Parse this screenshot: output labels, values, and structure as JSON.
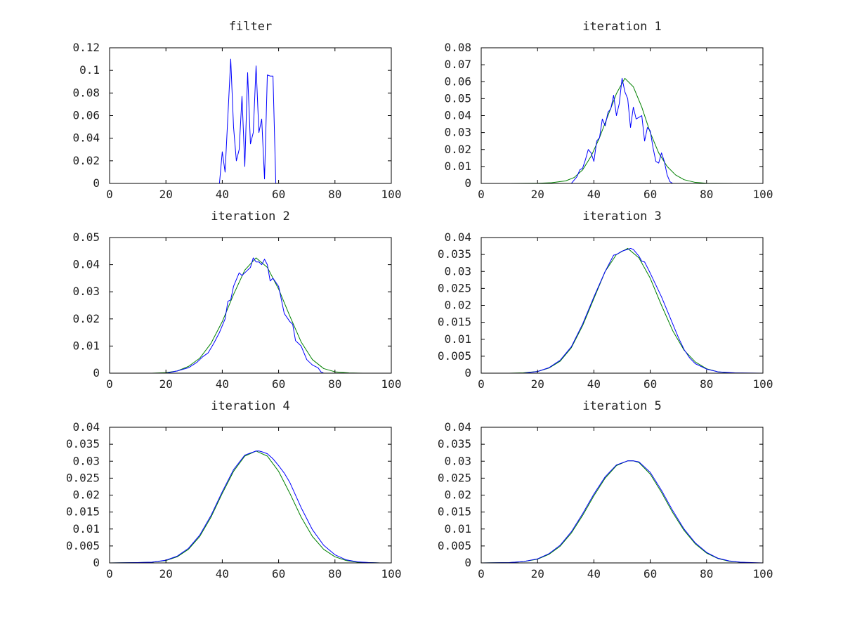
{
  "figure": {
    "colors": {
      "noisy": "#0000ff",
      "smooth": "#008000",
      "axis": "#000000",
      "text": "#222222"
    }
  },
  "chart_data": [
    {
      "type": "line",
      "title": "filter",
      "xlim": [
        0,
        100
      ],
      "ylim": [
        0,
        0.12
      ],
      "xticks": [
        0,
        20,
        40,
        60,
        80,
        100
      ],
      "xtick_labels": [
        "0",
        "20",
        "40",
        "60",
        "80",
        "100"
      ],
      "yticks": [
        0,
        0.02,
        0.04,
        0.06,
        0.08,
        0.1,
        0.12
      ],
      "ytick_labels": [
        "0",
        "0.02",
        "0.04",
        "0.06",
        "0.08",
        "0.1",
        "0.12"
      ],
      "grid": false,
      "series": [
        {
          "color": "#0000ff",
          "x": [
            0,
            39,
            40,
            41,
            42,
            43,
            44,
            45,
            46,
            47,
            48,
            49,
            50,
            51,
            52,
            53,
            54,
            55,
            56,
            57,
            58,
            59,
            60,
            61,
            100
          ],
          "y": [
            0,
            0,
            0.028,
            0.01,
            0.06,
            0.11,
            0.05,
            0.02,
            0.03,
            0.077,
            0.015,
            0.098,
            0.035,
            0.045,
            0.104,
            0.045,
            0.057,
            0.004,
            0.096,
            0.095,
            0.095,
            0,
            0,
            0,
            0
          ]
        }
      ]
    },
    {
      "type": "line",
      "title": "iteration 1",
      "xlim": [
        0,
        100
      ],
      "ylim": [
        0,
        0.08
      ],
      "xticks": [
        0,
        20,
        40,
        60,
        80,
        100
      ],
      "xtick_labels": [
        "0",
        "20",
        "40",
        "60",
        "80",
        "100"
      ],
      "yticks": [
        0,
        0.01,
        0.02,
        0.03,
        0.04,
        0.05,
        0.06,
        0.07,
        0.08
      ],
      "ytick_labels": [
        "0",
        "0.01",
        "0.02",
        "0.03",
        "0.04",
        "0.05",
        "0.06",
        "0.07",
        "0.08"
      ],
      "grid": false,
      "series": [
        {
          "color": "#008000",
          "x": [
            0,
            10,
            20,
            25,
            30,
            33,
            36,
            39,
            42,
            45,
            48,
            51,
            54,
            57,
            60,
            63,
            66,
            69,
            72,
            76,
            80,
            90,
            100
          ],
          "y": [
            0,
            0,
            0.0001,
            0.0004,
            0.0015,
            0.0035,
            0.008,
            0.016,
            0.027,
            0.04,
            0.053,
            0.062,
            0.057,
            0.045,
            0.03,
            0.018,
            0.01,
            0.005,
            0.0022,
            0.0006,
            0.0001,
            0,
            0
          ]
        },
        {
          "color": "#0000ff",
          "x": [
            0,
            32,
            33,
            34,
            35,
            36,
            37,
            38,
            39,
            40,
            41,
            42,
            43,
            44,
            45,
            46,
            47,
            48,
            49,
            50,
            51,
            52,
            53,
            54,
            55,
            56,
            57,
            58,
            59,
            60,
            61,
            62,
            63,
            64,
            65,
            66,
            67,
            68,
            69,
            100
          ],
          "y": [
            0,
            0,
            0.002,
            0.004,
            0.008,
            0.009,
            0.014,
            0.02,
            0.018,
            0.013,
            0.025,
            0.027,
            0.038,
            0.034,
            0.042,
            0.044,
            0.052,
            0.04,
            0.047,
            0.062,
            0.054,
            0.05,
            0.033,
            0.045,
            0.038,
            0.039,
            0.04,
            0.025,
            0.033,
            0.031,
            0.021,
            0.013,
            0.012,
            0.018,
            0.013,
            0.005,
            0.001,
            0,
            0,
            0
          ]
        }
      ]
    },
    {
      "type": "line",
      "title": "iteration 2",
      "xlim": [
        0,
        100
      ],
      "ylim": [
        0,
        0.05
      ],
      "xticks": [
        0,
        20,
        40,
        60,
        80,
        100
      ],
      "xtick_labels": [
        "0",
        "20",
        "40",
        "60",
        "80",
        "100"
      ],
      "yticks": [
        0,
        0.01,
        0.02,
        0.03,
        0.04,
        0.05
      ],
      "ytick_labels": [
        "0",
        "0.01",
        "0.02",
        "0.03",
        "0.04",
        "0.05"
      ],
      "grid": false,
      "series": [
        {
          "color": "#008000",
          "x": [
            0,
            15,
            20,
            24,
            28,
            32,
            36,
            40,
            44,
            48,
            52,
            56,
            60,
            64,
            68,
            72,
            76,
            80,
            85,
            90,
            100
          ],
          "y": [
            0,
            0,
            0.0002,
            0.0008,
            0.0025,
            0.0055,
            0.011,
            0.019,
            0.029,
            0.038,
            0.0425,
            0.039,
            0.031,
            0.021,
            0.0115,
            0.005,
            0.0017,
            0.0005,
            0.0001,
            0,
            0
          ]
        },
        {
          "color": "#0000ff",
          "x": [
            0,
            20,
            24,
            28,
            31,
            33,
            35,
            37,
            39,
            41,
            42,
            43,
            44,
            46,
            47,
            48,
            50,
            51,
            52,
            53,
            54,
            55,
            56,
            57,
            58,
            60,
            61,
            62,
            64,
            65,
            66,
            67,
            68,
            70,
            71,
            72,
            74,
            75,
            76,
            80,
            100
          ],
          "y": [
            0,
            0,
            0.0008,
            0.002,
            0.004,
            0.006,
            0.0075,
            0.011,
            0.015,
            0.02,
            0.0265,
            0.027,
            0.032,
            0.037,
            0.036,
            0.037,
            0.039,
            0.0425,
            0.041,
            0.041,
            0.04,
            0.042,
            0.04,
            0.034,
            0.035,
            0.032,
            0.027,
            0.022,
            0.019,
            0.018,
            0.012,
            0.011,
            0.01,
            0.005,
            0.004,
            0.003,
            0.002,
            0.0005,
            0,
            0,
            0
          ]
        }
      ]
    },
    {
      "type": "line",
      "title": "iteration 3",
      "xlim": [
        0,
        100
      ],
      "ylim": [
        0,
        0.04
      ],
      "xticks": [
        0,
        20,
        40,
        60,
        80,
        100
      ],
      "xtick_labels": [
        "0",
        "20",
        "40",
        "60",
        "80",
        "100"
      ],
      "yticks": [
        0,
        0.005,
        0.01,
        0.015,
        0.02,
        0.025,
        0.03,
        0.035,
        0.04
      ],
      "ytick_labels": [
        "0",
        "0.005",
        "0.01",
        "0.015",
        "0.02",
        "0.025",
        "0.03",
        "0.035",
        "0.04"
      ],
      "grid": false,
      "series": [
        {
          "color": "#008000",
          "x": [
            0,
            10,
            15,
            20,
            24,
            28,
            32,
            36,
            40,
            44,
            48,
            52,
            56,
            60,
            64,
            68,
            72,
            76,
            80,
            84,
            88,
            92,
            100
          ],
          "y": [
            0,
            0,
            0.0001,
            0.0005,
            0.0015,
            0.0035,
            0.0075,
            0.014,
            0.022,
            0.03,
            0.035,
            0.0368,
            0.034,
            0.028,
            0.02,
            0.0125,
            0.0068,
            0.0033,
            0.0013,
            0.0004,
            0.0001,
            0,
            0
          ]
        },
        {
          "color": "#0000ff",
          "x": [
            0,
            15,
            20,
            24,
            28,
            32,
            36,
            40,
            44,
            47,
            48,
            50,
            52,
            53,
            54,
            56,
            57,
            58,
            60,
            62,
            64,
            66,
            68,
            70,
            72,
            74,
            76,
            80,
            84,
            90,
            100
          ],
          "y": [
            0,
            0,
            0.0005,
            0.0016,
            0.0038,
            0.0078,
            0.0145,
            0.0225,
            0.03,
            0.0348,
            0.035,
            0.036,
            0.0365,
            0.0368,
            0.0365,
            0.0345,
            0.033,
            0.0328,
            0.0295,
            0.026,
            0.0225,
            0.0185,
            0.0145,
            0.0105,
            0.007,
            0.0045,
            0.0028,
            0.0012,
            0.0004,
            0.0001,
            0
          ]
        }
      ]
    },
    {
      "type": "line",
      "title": "iteration 4",
      "xlim": [
        0,
        100
      ],
      "ylim": [
        0,
        0.04
      ],
      "xticks": [
        0,
        20,
        40,
        60,
        80,
        100
      ],
      "xtick_labels": [
        "0",
        "20",
        "40",
        "60",
        "80",
        "100"
      ],
      "yticks": [
        0,
        0.005,
        0.01,
        0.015,
        0.02,
        0.025,
        0.03,
        0.035,
        0.04
      ],
      "ytick_labels": [
        "0",
        "0.005",
        "0.01",
        "0.015",
        "0.02",
        "0.025",
        "0.03",
        "0.035",
        "0.04"
      ],
      "grid": false,
      "series": [
        {
          "color": "#008000",
          "x": [
            0,
            10,
            15,
            20,
            24,
            28,
            32,
            36,
            40,
            44,
            48,
            52,
            56,
            60,
            64,
            68,
            72,
            76,
            80,
            84,
            88,
            92,
            96,
            100
          ],
          "y": [
            0,
            0.0001,
            0.0002,
            0.0007,
            0.0018,
            0.004,
            0.0078,
            0.0135,
            0.0205,
            0.027,
            0.0315,
            0.033,
            0.0315,
            0.027,
            0.0205,
            0.0135,
            0.0078,
            0.004,
            0.0018,
            0.0007,
            0.0002,
            0.0001,
            0,
            0
          ]
        },
        {
          "color": "#0000ff",
          "x": [
            0,
            10,
            15,
            20,
            24,
            28,
            32,
            36,
            40,
            44,
            48,
            52,
            53,
            54,
            56,
            58,
            60,
            62,
            64,
            68,
            72,
            76,
            80,
            84,
            88,
            92,
            96,
            100
          ],
          "y": [
            0,
            0.0001,
            0.0002,
            0.0008,
            0.002,
            0.0043,
            0.0082,
            0.014,
            0.021,
            0.0275,
            0.0318,
            0.033,
            0.033,
            0.0328,
            0.0322,
            0.0307,
            0.0287,
            0.0265,
            0.0237,
            0.0163,
            0.0098,
            0.0052,
            0.0024,
            0.0009,
            0.0003,
            0.0001,
            0,
            0
          ]
        }
      ]
    },
    {
      "type": "line",
      "title": "iteration 5",
      "xlim": [
        0,
        100
      ],
      "ylim": [
        0,
        0.04
      ],
      "xticks": [
        0,
        20,
        40,
        60,
        80,
        100
      ],
      "xtick_labels": [
        "0",
        "20",
        "40",
        "60",
        "80",
        "100"
      ],
      "yticks": [
        0,
        0.005,
        0.01,
        0.015,
        0.02,
        0.025,
        0.03,
        0.035,
        0.04
      ],
      "ytick_labels": [
        "0",
        "0.005",
        "0.01",
        "0.015",
        "0.02",
        "0.025",
        "0.03",
        "0.035",
        "0.04"
      ],
      "grid": false,
      "series": [
        {
          "color": "#008000",
          "x": [
            0,
            10,
            15,
            20,
            24,
            28,
            32,
            36,
            40,
            44,
            48,
            52,
            54,
            56,
            60,
            64,
            68,
            72,
            76,
            80,
            84,
            88,
            92,
            96,
            100
          ],
          "y": [
            0,
            0.0001,
            0.0004,
            0.0011,
            0.0025,
            0.0049,
            0.0088,
            0.014,
            0.0198,
            0.025,
            0.0287,
            0.0301,
            0.0301,
            0.0296,
            0.0262,
            0.0208,
            0.0148,
            0.0096,
            0.0056,
            0.0029,
            0.0013,
            0.0005,
            0.0002,
            0,
            0
          ]
        },
        {
          "color": "#0000ff",
          "x": [
            0,
            10,
            15,
            20,
            24,
            28,
            32,
            36,
            40,
            44,
            48,
            52,
            54,
            56,
            60,
            64,
            68,
            72,
            76,
            80,
            84,
            88,
            92,
            96,
            100
          ],
          "y": [
            0,
            0.0001,
            0.0004,
            0.0012,
            0.0027,
            0.0052,
            0.0092,
            0.0145,
            0.0203,
            0.0254,
            0.0289,
            0.0301,
            0.0301,
            0.0298,
            0.0267,
            0.0214,
            0.0154,
            0.01,
            0.0059,
            0.0031,
            0.0014,
            0.0006,
            0.0002,
            0.0001,
            0
          ]
        }
      ]
    }
  ]
}
